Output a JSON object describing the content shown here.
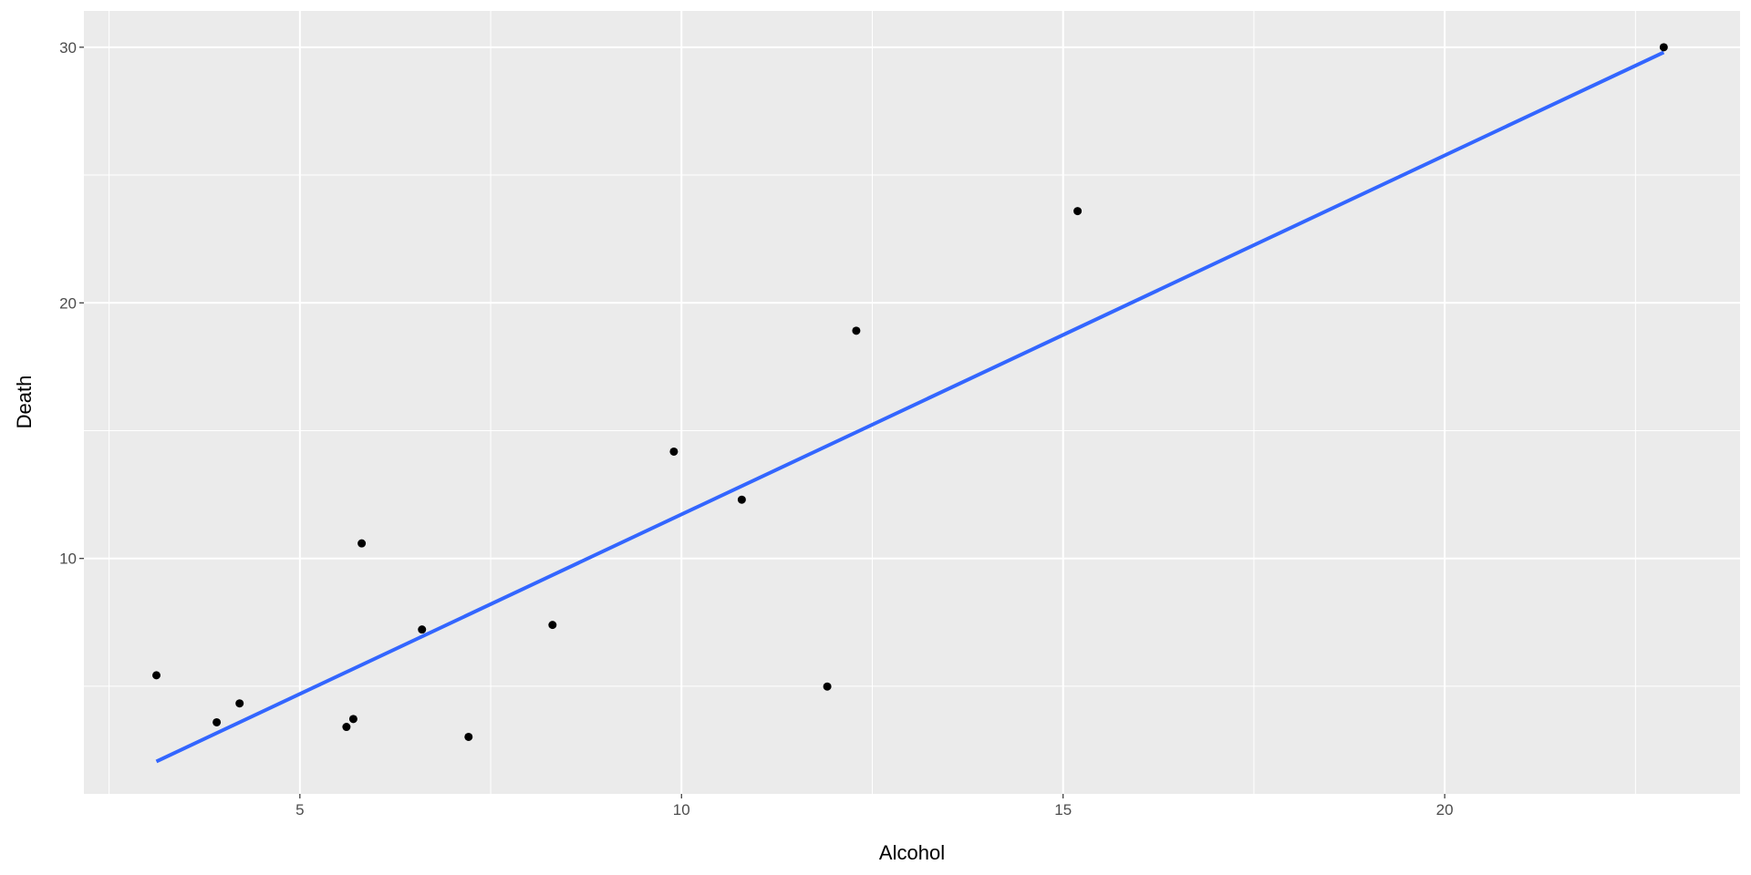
{
  "chart_data": {
    "type": "scatter",
    "xlabel": "Alcohol",
    "ylabel": "Death",
    "xlim": [
      2.17,
      23.87
    ],
    "ylim": [
      0.79,
      31.42
    ],
    "xticks": [
      5,
      10,
      15,
      20
    ],
    "yticks": [
      10,
      20,
      30
    ],
    "xtick_labels": [
      "5",
      "10",
      "15",
      "20"
    ],
    "ytick_labels": [
      "10",
      "20",
      "30"
    ],
    "grid": true,
    "points": [
      {
        "x": 3.12,
        "y": 5.43
      },
      {
        "x": 3.91,
        "y": 3.59
      },
      {
        "x": 4.21,
        "y": 4.33
      },
      {
        "x": 5.61,
        "y": 3.41
      },
      {
        "x": 5.7,
        "y": 3.72
      },
      {
        "x": 5.81,
        "y": 10.59
      },
      {
        "x": 6.6,
        "y": 7.22
      },
      {
        "x": 7.21,
        "y": 3.02
      },
      {
        "x": 8.31,
        "y": 7.4
      },
      {
        "x": 9.9,
        "y": 14.18
      },
      {
        "x": 10.79,
        "y": 12.3
      },
      {
        "x": 11.91,
        "y": 4.99
      },
      {
        "x": 12.29,
        "y": 18.91
      },
      {
        "x": 15.19,
        "y": 23.59
      },
      {
        "x": 22.87,
        "y": 30.0
      }
    ],
    "fit_line": {
      "method": "linear",
      "x": [
        3.12,
        22.87
      ],
      "y": [
        2.06,
        29.8
      ]
    },
    "colors": {
      "panel": "#ebebeb",
      "grid": "#ffffff",
      "points": "#000000",
      "line": "#3366ff"
    }
  }
}
